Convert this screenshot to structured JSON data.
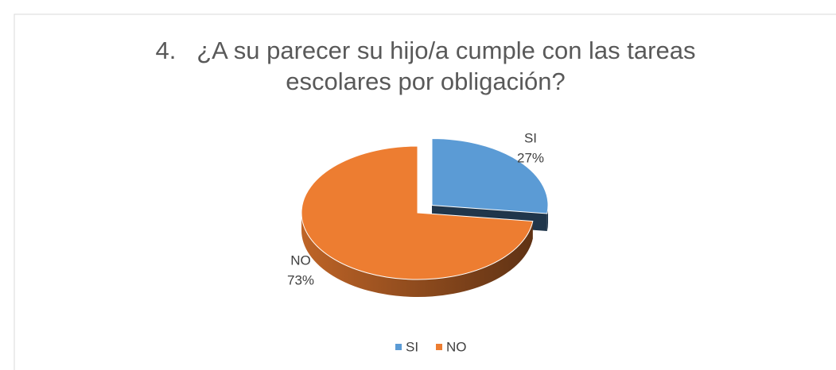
{
  "chart_data": {
    "type": "pie3d",
    "title": "4.   ¿A su parecer su hijo/a cumple con las tareas escolares por obligación?",
    "categories": [
      "SI",
      "NO"
    ],
    "values": [
      27,
      73
    ],
    "value_labels": [
      "27%",
      "73%"
    ],
    "colors": [
      "#5b9bd5",
      "#ed7d31"
    ],
    "legend": "bottom"
  }
}
